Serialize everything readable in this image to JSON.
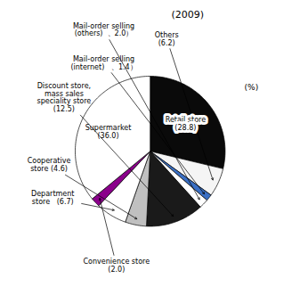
{
  "chart_data": {
    "type": "pie",
    "title": "(2009)",
    "categories": [
      "Retail store\n(28.8)",
      "Others\n(6.2)",
      "Mail-order selling\n(internet)   、1.4）",
      "Mail-order selling\n(others)  、2.0）",
      "Discount store,\nmass sales\nspeciality store\n(12.5)",
      "Cooperative\nstore (4.6)",
      "Department\nstore   (6.7)",
      "Convenience store\n(2.0)",
      "Supermarket\n(36.0)"
    ],
    "values": [
      28.8,
      6.2,
      1.4,
      2.0,
      12.5,
      4.6,
      6.7,
      2.0,
      36.0
    ],
    "colors": [
      "#0a0a0a",
      "#f5f5f5",
      "#3a6fc4",
      "#ffffff",
      "#1a1a1a",
      "#c0c0c0",
      "#ffffff",
      "#8B008B",
      "#ffffff"
    ],
    "annotations": [
      "(%)"
    ],
    "tick_labels": false
  }
}
